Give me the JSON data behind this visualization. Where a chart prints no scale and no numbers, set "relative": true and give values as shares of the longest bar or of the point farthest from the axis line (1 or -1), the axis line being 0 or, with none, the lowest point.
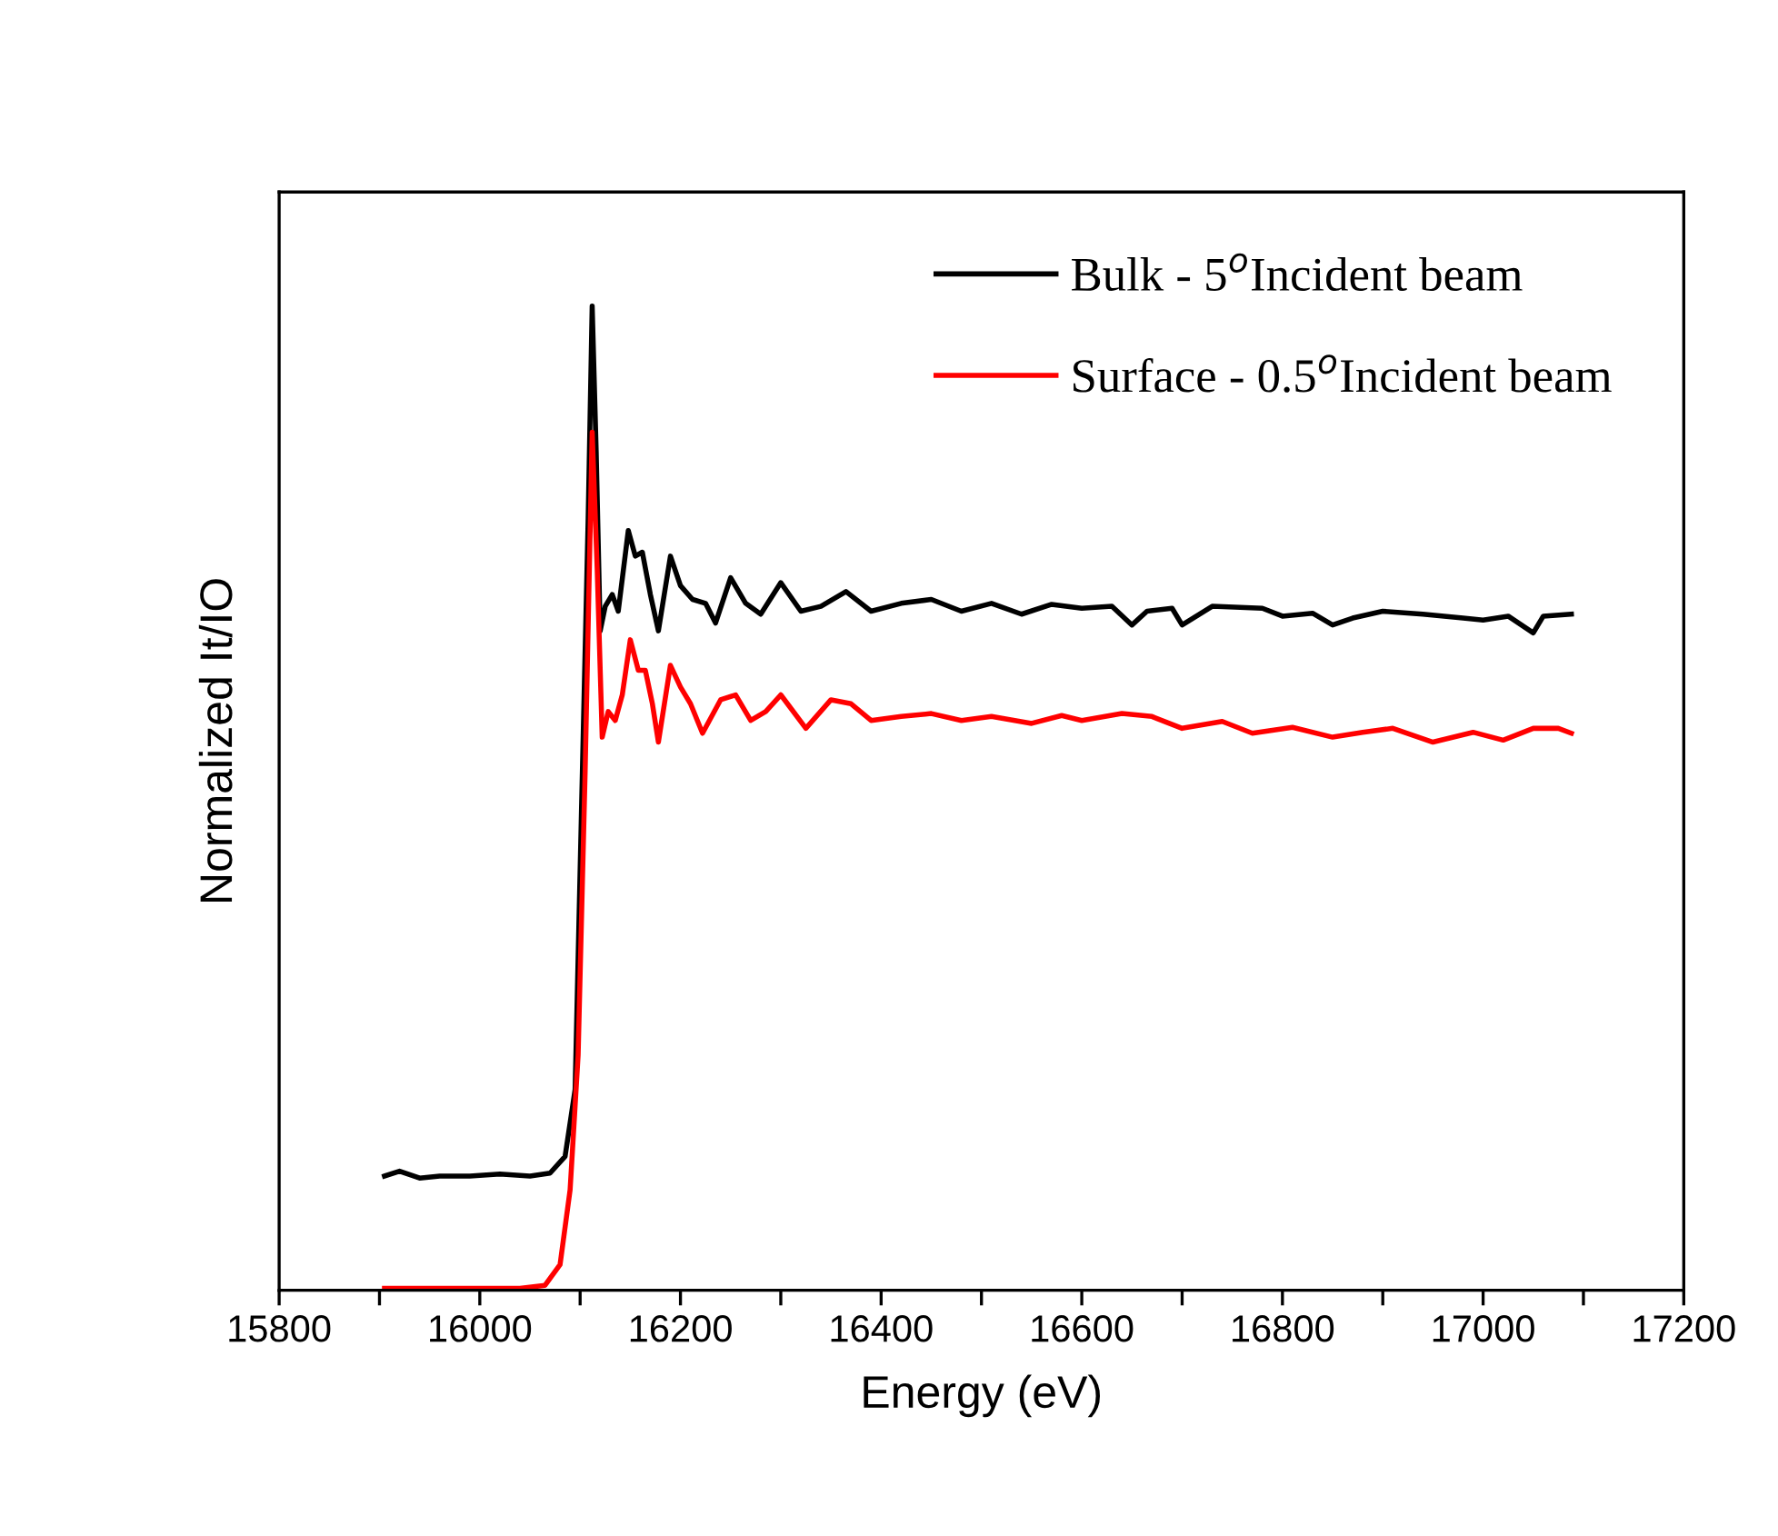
{
  "chart_data": {
    "type": "line",
    "relative": true,
    "xlabel": "Energy (eV)",
    "ylabel": "Normalized It/IO",
    "xlim": [
      15800,
      17200
    ],
    "xticks": [
      15800,
      {
        "value": 15900,
        "label": null
      },
      16000,
      {
        "value": 16100,
        "label": null
      },
      16200,
      {
        "value": 16300,
        "label": null
      },
      16400,
      {
        "value": 16500,
        "label": null
      },
      16600,
      {
        "value": 16700,
        "label": null
      },
      16800,
      {
        "value": 16900,
        "label": null
      },
      17000,
      {
        "value": 17100,
        "label": null
      },
      17200
    ],
    "legend": "top right",
    "grid": false,
    "line_style": "solid",
    "series": [
      {
        "name": "Bulk - 5$^{o}$Incident beam",
        "color": "#000000",
        "x": [
          15905,
          15920,
          15940,
          15960,
          15990,
          16020,
          16050,
          16070,
          16085,
          16095,
          16108,
          16112,
          16116,
          16120,
          16125,
          16132,
          16138,
          16148,
          16155,
          16162,
          16170,
          16178,
          16190,
          16200,
          16212,
          16225,
          16235,
          16250,
          16265,
          16280,
          16300,
          16320,
          16340,
          16365,
          16390,
          16420,
          16450,
          16480,
          16510,
          16540,
          16570,
          16600,
          16630,
          16650,
          16665,
          16690,
          16700,
          16730,
          16780,
          16800,
          16830,
          16850,
          16870,
          16900,
          16940,
          16980,
          17000,
          17025,
          17050,
          17060,
          17088
        ],
        "values": [
          0.116,
          0.121,
          0.114,
          0.116,
          0.116,
          0.118,
          0.116,
          0.119,
          0.136,
          0.204,
          0.784,
          1,
          0.852,
          0.67,
          0.695,
          0.707,
          0.69,
          0.772,
          0.746,
          0.75,
          0.707,
          0.67,
          0.746,
          0.716,
          0.702,
          0.698,
          0.678,
          0.724,
          0.698,
          0.687,
          0.719,
          0.69,
          0.695,
          0.71,
          0.69,
          0.698,
          0.702,
          0.69,
          0.698,
          0.687,
          0.697,
          0.693,
          0.695,
          0.676,
          0.69,
          0.693,
          0.676,
          0.695,
          0.693,
          0.685,
          0.688,
          0.676,
          0.683,
          0.69,
          0.687,
          0.683,
          0.681,
          0.685,
          0.668,
          0.685,
          0.687
        ]
      },
      {
        "name": "Surface - 0.5$^{o}$Incident beam",
        "color": "#ff0000",
        "x": [
          15905,
          15950,
          16000,
          16040,
          16065,
          16080,
          16090,
          16098,
          16105,
          16112,
          16117,
          16122,
          16128,
          16135,
          16142,
          16150,
          16158,
          16165,
          16172,
          16178,
          16190,
          16200,
          16210,
          16222,
          16240,
          16255,
          16270,
          16285,
          16300,
          16325,
          16350,
          16370,
          16390,
          16420,
          16450,
          16480,
          16510,
          16550,
          16580,
          16600,
          16640,
          16670,
          16700,
          16740,
          16770,
          16810,
          16850,
          16880,
          16910,
          16950,
          16990,
          17020,
          17050,
          17075,
          17088
        ],
        "values": [
          0.002,
          0.002,
          0.002,
          0.002,
          0.005,
          0.026,
          0.102,
          0.239,
          0.528,
          0.872,
          0.733,
          0.562,
          0.588,
          0.579,
          0.605,
          0.661,
          0.63,
          0.63,
          0.596,
          0.557,
          0.635,
          0.613,
          0.596,
          0.566,
          0.6,
          0.605,
          0.579,
          0.588,
          0.605,
          0.571,
          0.6,
          0.596,
          0.579,
          0.583,
          0.586,
          0.579,
          0.583,
          0.576,
          0.584,
          0.579,
          0.586,
          0.583,
          0.571,
          0.578,
          0.566,
          0.572,
          0.562,
          0.567,
          0.571,
          0.557,
          0.567,
          0.559,
          0.571,
          0.571,
          0.566
        ]
      }
    ]
  }
}
